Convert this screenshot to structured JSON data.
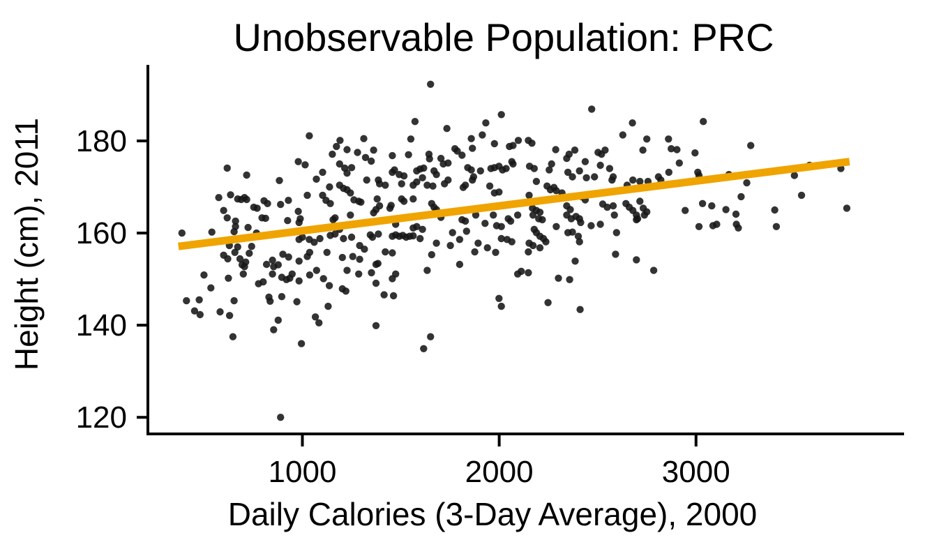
{
  "chart_data": {
    "type": "scatter",
    "title": "Unobservable Population: PRC",
    "xlabel": "Daily Calories (3-Day Average), 2000",
    "ylabel": "Height (cm), 2011",
    "xlim": [
      215,
      4050
    ],
    "ylim": [
      116.4,
      196.2
    ],
    "x_ticks": [
      1000,
      2000,
      3000
    ],
    "y_ticks": [
      120,
      140,
      160,
      180
    ],
    "grid": false,
    "legend": "none",
    "point_color": "#171717",
    "point_opacity": 0.88,
    "point_radius": 5.2,
    "trend_color": "#EFA400",
    "trend_width": 11,
    "trend": [
      [
        370,
        157.1
      ],
      [
        3780,
        175.5
      ]
    ],
    "points": [
      [
        1035,
        181.1
      ],
      [
        1173,
        178.8
      ],
      [
        1152,
        177.1
      ],
      [
        618,
        174.1
      ],
      [
        979,
        175.5
      ],
      [
        1014,
        174.8
      ],
      [
        717,
        172.6
      ],
      [
        1103,
        173.2
      ],
      [
        1071,
        171.7
      ],
      [
        883,
        171.4
      ],
      [
        1138,
        170.0
      ],
      [
        575,
        167.7
      ],
      [
        635,
        168.3
      ],
      [
        671,
        167.4
      ],
      [
        689,
        167.3
      ],
      [
        706,
        167.7
      ],
      [
        717,
        167.3
      ],
      [
        805,
        167.0
      ],
      [
        823,
        166.4
      ],
      [
        889,
        166.2
      ],
      [
        929,
        167.1
      ],
      [
        1025,
        168.2
      ],
      [
        1103,
        168.2
      ],
      [
        1120,
        167.1
      ],
      [
        1142,
        166.4
      ],
      [
        600,
        164.9
      ],
      [
        753,
        165.6
      ],
      [
        770,
        165.4
      ],
      [
        979,
        164.7
      ],
      [
        618,
        163.3
      ],
      [
        660,
        162.6
      ],
      [
        795,
        163.3
      ],
      [
        813,
        163.2
      ],
      [
        925,
        162.7
      ],
      [
        983,
        162.3
      ],
      [
        660,
        161.4
      ],
      [
        653,
        160.3
      ],
      [
        724,
        161.2
      ],
      [
        388,
        160.0
      ],
      [
        540,
        160.2
      ],
      [
        767,
        160.0
      ],
      [
        989,
        163.1
      ],
      [
        1000,
        159.1
      ],
      [
        983,
        158.6
      ],
      [
        1035,
        158.6
      ],
      [
        1060,
        158.0
      ],
      [
        1089,
        158.8
      ],
      [
        1142,
        159.5
      ],
      [
        1166,
        159.8
      ],
      [
        629,
        157.3
      ],
      [
        671,
        157.0
      ],
      [
        742,
        157.1
      ],
      [
        1166,
        163.3
      ],
      [
        1156,
        162.9
      ],
      [
        1651,
        192.3
      ],
      [
        2011,
        185.7
      ],
      [
        1572,
        184.2
      ],
      [
        1932,
        183.9
      ],
      [
        1734,
        182.7
      ],
      [
        1914,
        181.3
      ],
      [
        1191,
        180.1
      ],
      [
        1312,
        180.5
      ],
      [
        1551,
        180.4
      ],
      [
        1858,
        180.5
      ],
      [
        2097,
        180.1
      ],
      [
        1227,
        178.1
      ],
      [
        1280,
        177.5
      ],
      [
        1362,
        178.0
      ],
      [
        1457,
        176.8
      ],
      [
        1539,
        177.0
      ],
      [
        1643,
        177.1
      ],
      [
        1646,
        176.1
      ],
      [
        1775,
        178.3
      ],
      [
        1787,
        177.8
      ],
      [
        1811,
        176.9
      ],
      [
        1864,
        178.4
      ],
      [
        1976,
        179.4
      ],
      [
        2052,
        178.8
      ],
      [
        2070,
        179.0
      ],
      [
        1321,
        176.4
      ],
      [
        1350,
        175.6
      ],
      [
        1704,
        176.2
      ],
      [
        1716,
        175.0
      ],
      [
        1740,
        175.2
      ],
      [
        1189,
        175.0
      ],
      [
        1215,
        174.1
      ],
      [
        1250,
        174.2
      ],
      [
        1227,
        173.0
      ],
      [
        1457,
        173.2
      ],
      [
        1468,
        173.7
      ],
      [
        1492,
        172.7
      ],
      [
        1516,
        172.4
      ],
      [
        1581,
        173.5
      ],
      [
        1598,
        173.9
      ],
      [
        1616,
        174.1
      ],
      [
        1669,
        173.5
      ],
      [
        1681,
        172.7
      ],
      [
        1840,
        174.2
      ],
      [
        1858,
        173.7
      ],
      [
        1905,
        173.5
      ],
      [
        1958,
        174.0
      ],
      [
        1976,
        174.2
      ],
      [
        1999,
        174.5
      ],
      [
        2017,
        173.7
      ],
      [
        2035,
        174.0
      ],
      [
        2064,
        175.5
      ],
      [
        2070,
        175.0
      ],
      [
        1327,
        171.5
      ],
      [
        1386,
        171.5
      ],
      [
        1392,
        170.7
      ],
      [
        1421,
        170.4
      ],
      [
        1504,
        170.7
      ],
      [
        1563,
        170.4
      ],
      [
        1581,
        171.1
      ],
      [
        1610,
        172.0
      ],
      [
        1634,
        170.4
      ],
      [
        1663,
        170.2
      ],
      [
        1722,
        170.7
      ],
      [
        1740,
        171.5
      ],
      [
        1817,
        169.9
      ],
      [
        1828,
        170.4
      ],
      [
        1864,
        171.5
      ],
      [
        1870,
        172.2
      ],
      [
        1952,
        170.2
      ],
      [
        1976,
        168.7
      ],
      [
        1999,
        168.9
      ],
      [
        1189,
        170.4
      ],
      [
        1209,
        169.7
      ],
      [
        1227,
        169.4
      ],
      [
        1244,
        168.7
      ],
      [
        1262,
        167.2
      ],
      [
        1286,
        166.9
      ],
      [
        1297,
        166.7
      ],
      [
        1380,
        167.4
      ],
      [
        1392,
        165.9
      ],
      [
        1374,
        165.1
      ],
      [
        1362,
        164.4
      ],
      [
        1445,
        165.4
      ],
      [
        1451,
        166.0
      ],
      [
        1504,
        167.4
      ],
      [
        1516,
        166.9
      ],
      [
        1563,
        167.4
      ],
      [
        1657,
        166.4
      ],
      [
        1669,
        165.6
      ],
      [
        1681,
        165.1
      ],
      [
        1704,
        163.4
      ],
      [
        1811,
        162.9
      ],
      [
        1828,
        162.6
      ],
      [
        1881,
        163.9
      ],
      [
        1928,
        162.1
      ],
      [
        1970,
        163.9
      ],
      [
        1987,
        161.6
      ],
      [
        2011,
        161.4
      ],
      [
        2046,
        163.1
      ],
      [
        2058,
        162.6
      ],
      [
        2094,
        163.9
      ],
      [
        1244,
        163.9
      ],
      [
        1474,
        161.9
      ],
      [
        1563,
        161.1
      ],
      [
        1581,
        161.4
      ],
      [
        1610,
        160.8
      ],
      [
        1763,
        160.1
      ],
      [
        1834,
        160.4
      ],
      [
        1345,
        159.6
      ],
      [
        1356,
        159.1
      ],
      [
        1386,
        159.8
      ],
      [
        1457,
        159.3
      ],
      [
        1474,
        159.6
      ],
      [
        1492,
        159.3
      ],
      [
        1510,
        159.5
      ],
      [
        1527,
        159.1
      ],
      [
        1545,
        159.3
      ],
      [
        1563,
        159.4
      ],
      [
        1598,
        158.8
      ],
      [
        1681,
        157.8
      ],
      [
        1752,
        157.3
      ],
      [
        1799,
        158.6
      ],
      [
        1893,
        157.8
      ],
      [
        1940,
        156.8
      ],
      [
        2011,
        158.8
      ],
      [
        2040,
        158.6
      ],
      [
        2064,
        158.1
      ],
      [
        1189,
        160.8
      ],
      [
        1209,
        158.8
      ],
      [
        1250,
        159.1
      ],
      [
        1291,
        157.3
      ],
      [
        1315,
        156.5
      ],
      [
        2470,
        186.9
      ],
      [
        3037,
        184.2
      ],
      [
        2677,
        183.9
      ],
      [
        2628,
        181.3
      ],
      [
        2750,
        180.4
      ],
      [
        2860,
        180.4
      ],
      [
        2730,
        178.0
      ],
      [
        2874,
        178.3
      ],
      [
        2903,
        178.1
      ],
      [
        2995,
        177.4
      ],
      [
        2148,
        180.1
      ],
      [
        2166,
        179.5
      ],
      [
        2287,
        178.1
      ],
      [
        2384,
        178.0
      ],
      [
        2355,
        177.1
      ],
      [
        2502,
        177.5
      ],
      [
        2520,
        177.1
      ],
      [
        2538,
        178.0
      ],
      [
        2154,
        174.5
      ],
      [
        2178,
        174.0
      ],
      [
        2266,
        175.0
      ],
      [
        2254,
        173.7
      ],
      [
        2343,
        176.2
      ],
      [
        2349,
        173.2
      ],
      [
        2372,
        172.2
      ],
      [
        2408,
        173.5
      ],
      [
        2437,
        175.5
      ],
      [
        2443,
        172.0
      ],
      [
        2484,
        172.2
      ],
      [
        2514,
        174.7
      ],
      [
        2561,
        174.0
      ],
      [
        2573,
        171.5
      ],
      [
        2579,
        172.2
      ],
      [
        2650,
        170.4
      ],
      [
        2679,
        171.5
      ],
      [
        2715,
        171.2
      ],
      [
        2756,
        171.2
      ],
      [
        2809,
        172.2
      ],
      [
        2821,
        171.5
      ],
      [
        2862,
        173.2
      ],
      [
        2915,
        175.2
      ],
      [
        3009,
        173.2
      ],
      [
        3015,
        172.5
      ],
      [
        2189,
        171.2
      ],
      [
        2243,
        170.2
      ],
      [
        2260,
        169.4
      ],
      [
        2278,
        169.9
      ],
      [
        2290,
        169.2
      ],
      [
        2319,
        168.7
      ],
      [
        2152,
        168.2
      ],
      [
        2169,
        165.4
      ],
      [
        2189,
        164.9
      ],
      [
        2207,
        164.5
      ],
      [
        2172,
        163.9
      ],
      [
        2201,
        163.1
      ],
      [
        2219,
        162.9
      ],
      [
        2420,
        167.9
      ],
      [
        2437,
        167.2
      ],
      [
        2343,
        165.9
      ],
      [
        2361,
        165.1
      ],
      [
        2343,
        163.9
      ],
      [
        2366,
        163.1
      ],
      [
        2390,
        163.6
      ],
      [
        2408,
        163.1
      ],
      [
        2414,
        162.3
      ],
      [
        2526,
        166.3
      ],
      [
        2549,
        165.6
      ],
      [
        2579,
        165.9
      ],
      [
        2585,
        163.9
      ],
      [
        2644,
        166.4
      ],
      [
        2661,
        165.6
      ],
      [
        2679,
        164.9
      ],
      [
        2697,
        163.9
      ],
      [
        2703,
        163.1
      ],
      [
        2697,
        162.9
      ],
      [
        2715,
        166.9
      ],
      [
        2732,
        165.4
      ],
      [
        2738,
        163.9
      ],
      [
        2750,
        164.6
      ],
      [
        2945,
        164.9
      ],
      [
        3033,
        166.4
      ],
      [
        3080,
        165.9
      ],
      [
        2467,
        161.6
      ],
      [
        2514,
        161.9
      ],
      [
        2596,
        160.1
      ],
      [
        2290,
        161.4
      ],
      [
        2349,
        160.1
      ],
      [
        2372,
        160.2
      ],
      [
        2178,
        160.8
      ],
      [
        2189,
        160.1
      ],
      [
        2207,
        159.3
      ],
      [
        2225,
        158.8
      ],
      [
        2237,
        158.1
      ],
      [
        2152,
        157.8
      ],
      [
        2172,
        157.3
      ],
      [
        2207,
        156.8
      ],
      [
        2402,
        159.3
      ],
      [
        2408,
        158.1
      ],
      [
        3015,
        161.4
      ],
      [
        3086,
        161.6
      ],
      [
        3278,
        179.0
      ],
      [
        3167,
        172.7
      ],
      [
        3258,
        170.9
      ],
      [
        3577,
        174.7
      ],
      [
        3500,
        172.5
      ],
      [
        3736,
        174.0
      ],
      [
        3229,
        167.9
      ],
      [
        3536,
        168.2
      ],
      [
        3152,
        165.1
      ],
      [
        3203,
        164.1
      ],
      [
        3400,
        165.0
      ],
      [
        3766,
        165.4
      ],
      [
        3205,
        161.9
      ],
      [
        3215,
        161.1
      ],
      [
        3408,
        161.4
      ],
      [
        3105,
        161.9
      ],
      [
        600,
        155.2
      ],
      [
        621,
        154.4
      ],
      [
        657,
        155.8
      ],
      [
        683,
        154.4
      ],
      [
        694,
        153.1
      ],
      [
        706,
        152.7
      ],
      [
        712,
        153.7
      ],
      [
        730,
        155.6
      ],
      [
        901,
        155.4
      ],
      [
        930,
        154.8
      ],
      [
        983,
        153.9
      ],
      [
        1025,
        154.9
      ],
      [
        1037,
        155.8
      ],
      [
        1125,
        155.8
      ],
      [
        818,
        153.2
      ],
      [
        848,
        154.1
      ],
      [
        854,
        152.7
      ],
      [
        877,
        153.1
      ],
      [
        500,
        150.9
      ],
      [
        624,
        150.2
      ],
      [
        700,
        151.1
      ],
      [
        777,
        149.0
      ],
      [
        801,
        149.4
      ],
      [
        848,
        151.1
      ],
      [
        895,
        150.4
      ],
      [
        919,
        149.9
      ],
      [
        936,
        150.2
      ],
      [
        948,
        151.1
      ],
      [
        983,
        149.6
      ],
      [
        1037,
        150.9
      ],
      [
        1072,
        151.9
      ],
      [
        1107,
        150.1
      ],
      [
        1137,
        148.6
      ],
      [
        535,
        148.1
      ],
      [
        411,
        145.3
      ],
      [
        476,
        145.5
      ],
      [
        452,
        143.1
      ],
      [
        480,
        142.3
      ],
      [
        582,
        142.9
      ],
      [
        630,
        142.1
      ],
      [
        653,
        145.3
      ],
      [
        830,
        146.1
      ],
      [
        836,
        145.2
      ],
      [
        895,
        146.2
      ],
      [
        972,
        145.1
      ],
      [
        1131,
        144.1
      ],
      [
        1066,
        141.8
      ],
      [
        1084,
        140.5
      ],
      [
        877,
        141.1
      ],
      [
        854,
        139.0
      ],
      [
        647,
        137.5
      ],
      [
        995,
        136.0
      ],
      [
        889,
        120.0
      ],
      [
        1203,
        154.7
      ],
      [
        1256,
        154.9
      ],
      [
        1291,
        154.3
      ],
      [
        1227,
        151.9
      ],
      [
        1286,
        151.1
      ],
      [
        1351,
        151.4
      ],
      [
        1374,
        153.2
      ],
      [
        1384,
        153.4
      ],
      [
        1421,
        155.9
      ],
      [
        1457,
        155.7
      ],
      [
        1474,
        151.1
      ],
      [
        1457,
        150.1
      ],
      [
        1374,
        149.1
      ],
      [
        1203,
        147.9
      ],
      [
        1221,
        147.4
      ],
      [
        1415,
        146.6
      ],
      [
        1463,
        146.4
      ],
      [
        1634,
        151.9
      ],
      [
        1657,
        155.3
      ],
      [
        1799,
        153.2
      ],
      [
        1876,
        155.9
      ],
      [
        1982,
        155.8
      ],
      [
        1999,
        145.8
      ],
      [
        2011,
        144.1
      ],
      [
        2094,
        151.1
      ],
      [
        2112,
        151.7
      ],
      [
        1374,
        139.9
      ],
      [
        1651,
        137.5
      ],
      [
        1616,
        134.9
      ],
      [
        2148,
        155.9
      ],
      [
        2386,
        153.9
      ],
      [
        2591,
        155.4
      ],
      [
        2697,
        154.2
      ],
      [
        2785,
        151.9
      ],
      [
        2148,
        151.4
      ],
      [
        2301,
        150.2
      ],
      [
        2358,
        149.9
      ],
      [
        2248,
        144.9
      ],
      [
        2411,
        143.4
      ]
    ]
  }
}
